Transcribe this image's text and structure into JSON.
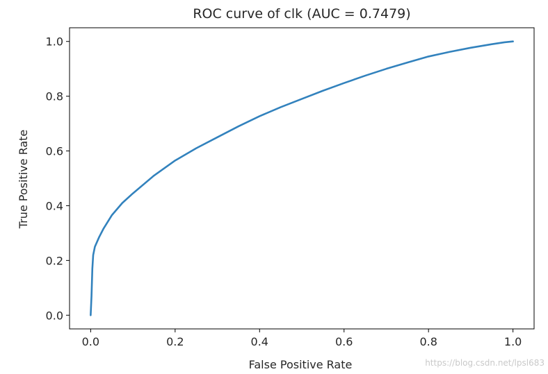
{
  "chart_data": {
    "type": "line",
    "title": "ROC curve of clk (AUC = 0.7479)",
    "xlabel": "False Positive Rate",
    "ylabel": "True Positive Rate",
    "xlim": [
      -0.05,
      1.05
    ],
    "ylim": [
      -0.05,
      1.05
    ],
    "xticks": [
      0.0,
      0.2,
      0.4,
      0.6,
      0.8,
      1.0
    ],
    "yticks": [
      0.0,
      0.2,
      0.4,
      0.6,
      0.8,
      1.0
    ],
    "xtick_labels": [
      "0.0",
      "0.2",
      "0.4",
      "0.6",
      "0.8",
      "1.0"
    ],
    "ytick_labels": [
      "0.0",
      "0.2",
      "0.4",
      "0.6",
      "0.8",
      "1.0"
    ],
    "grid": false,
    "legend": "none",
    "series": [
      {
        "color": "#3282bd",
        "x": [
          0.0,
          0.002,
          0.004,
          0.006,
          0.01,
          0.02,
          0.03,
          0.05,
          0.075,
          0.1,
          0.15,
          0.2,
          0.25,
          0.3,
          0.35,
          0.4,
          0.45,
          0.5,
          0.55,
          0.6,
          0.65,
          0.7,
          0.75,
          0.8,
          0.85,
          0.9,
          0.95,
          0.98,
          1.0
        ],
        "y": [
          0.0,
          0.07,
          0.17,
          0.22,
          0.25,
          0.285,
          0.315,
          0.365,
          0.41,
          0.445,
          0.51,
          0.565,
          0.61,
          0.65,
          0.69,
          0.727,
          0.76,
          0.79,
          0.82,
          0.848,
          0.875,
          0.9,
          0.923,
          0.945,
          0.962,
          0.977,
          0.99,
          0.997,
          1.0
        ]
      }
    ]
  },
  "watermark": "https://blog.csdn.net/lpsl683"
}
